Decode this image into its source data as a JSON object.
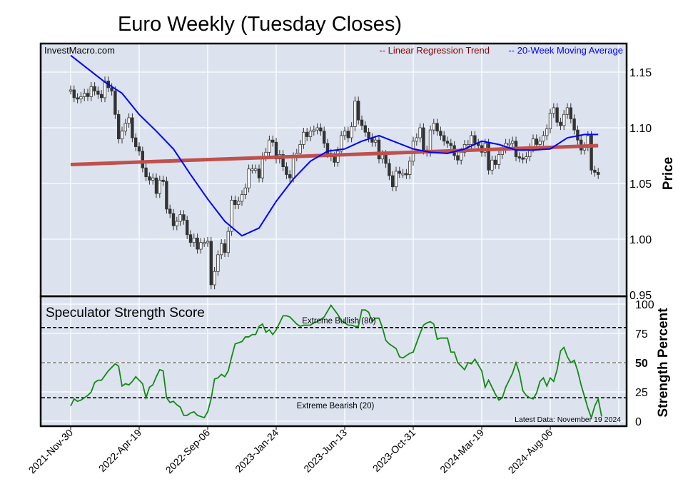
{
  "title": "Euro Weekly (Tuesday Closes)",
  "watermark": "InvestMacro.com",
  "colors": {
    "plot_bg": "#dce3ef",
    "grid": "#ffffff",
    "up_candle": "#ffffff",
    "down_candle": "#333333",
    "trend": "#c0504d",
    "moving_average": "#0000ff",
    "strength": "#138a13",
    "trend_legend": "#8b0000"
  },
  "chart_data": [
    {
      "type": "candlestick",
      "ylabel": "Price",
      "ylim": [
        0.95,
        1.17
      ],
      "yticks": [
        "1.15",
        "1.10",
        "1.05",
        "1.00",
        "0.95"
      ],
      "grid": true,
      "legend_position": "top-right",
      "legend": [
        {
          "label": "-- Linear Regression Trend",
          "color": "#8b0000"
        },
        {
          "label": "-- 20-Week Moving Average",
          "color": "#0000ff"
        }
      ],
      "x_axis": {
        "type": "date",
        "frequency": "weekly",
        "first_week": "2021-11-30",
        "ticks": [
          "2021-Nov-30",
          "2022-Apr-19",
          "2022-Sep-06",
          "2023-Jan-24",
          "2023-Jun-13",
          "2023-Oct-31",
          "2024-Mar-19",
          "2024-Aug-06"
        ]
      },
      "weekly_closes": [
        1.134,
        1.127,
        1.126,
        1.128,
        1.131,
        1.128,
        1.137,
        1.133,
        1.13,
        1.127,
        1.142,
        1.136,
        1.133,
        1.112,
        1.09,
        1.097,
        1.104,
        1.109,
        1.091,
        1.083,
        1.079,
        1.064,
        1.056,
        1.053,
        1.055,
        1.041,
        1.053,
        1.052,
        1.027,
        1.023,
        1.012,
        1.016,
        1.022,
        1.017,
        1.004,
        0.997,
        1.001,
        0.991,
        0.997,
        0.997,
        0.998,
        0.959,
        0.971,
        0.986,
        0.996,
        0.988,
        1.007,
        1.035,
        1.031,
        1.034,
        1.04,
        1.046,
        1.063,
        1.063,
        1.063,
        1.055,
        1.074,
        1.078,
        1.089,
        1.087,
        1.072,
        1.076,
        1.065,
        1.058,
        1.055,
        1.074,
        1.077,
        1.085,
        1.096,
        1.092,
        1.097,
        1.098,
        1.1,
        1.097,
        1.086,
        1.077,
        1.074,
        1.069,
        1.079,
        1.093,
        1.097,
        1.091,
        1.101,
        1.124,
        1.107,
        1.102,
        1.096,
        1.091,
        1.087,
        1.089,
        1.072,
        1.076,
        1.068,
        1.057,
        1.047,
        1.061,
        1.059,
        1.059,
        1.058,
        1.07,
        1.088,
        1.091,
        1.1,
        1.08,
        1.078,
        1.098,
        1.104,
        1.097,
        1.093,
        1.088,
        1.086,
        1.084,
        1.075,
        1.071,
        1.078,
        1.085,
        1.085,
        1.093,
        1.086,
        1.084,
        1.078,
        1.086,
        1.062,
        1.071,
        1.067,
        1.076,
        1.081,
        1.086,
        1.086,
        1.088,
        1.074,
        1.073,
        1.072,
        1.074,
        1.082,
        1.09,
        1.085,
        1.088,
        1.093,
        1.099,
        1.113,
        1.118,
        1.105,
        1.102,
        1.112,
        1.118,
        1.108,
        1.098,
        1.089,
        1.08,
        1.083,
        1.093,
        1.062,
        1.06,
        1.058
      ],
      "moving_average_20w": [
        [
          "2021-11-30",
          1.165
        ],
        [
          "2022-01-04",
          1.153
        ],
        [
          "2022-02-08",
          1.141
        ],
        [
          "2022-03-15",
          1.131
        ],
        [
          "2022-04-19",
          1.112
        ],
        [
          "2022-05-24",
          1.097
        ],
        [
          "2022-06-28",
          1.081
        ],
        [
          "2022-08-02",
          1.058
        ],
        [
          "2022-09-06",
          1.036
        ],
        [
          "2022-10-11",
          1.016
        ],
        [
          "2022-11-15",
          1.003
        ],
        [
          "2022-12-20",
          1.01
        ],
        [
          "2023-01-24",
          1.034
        ],
        [
          "2023-02-28",
          1.054
        ],
        [
          "2023-04-04",
          1.07
        ],
        [
          "2023-05-09",
          1.079
        ],
        [
          "2023-06-13",
          1.081
        ],
        [
          "2023-07-18",
          1.088
        ],
        [
          "2023-08-22",
          1.093
        ],
        [
          "2023-09-26",
          1.087
        ],
        [
          "2023-10-31",
          1.081
        ],
        [
          "2023-12-05",
          1.078
        ],
        [
          "2024-01-09",
          1.077
        ],
        [
          "2024-02-13",
          1.081
        ],
        [
          "2024-03-19",
          1.088
        ],
        [
          "2024-04-23",
          1.085
        ],
        [
          "2024-05-28",
          1.08
        ],
        [
          "2024-07-02",
          1.08
        ],
        [
          "2024-08-06",
          1.081
        ],
        [
          "2024-09-10",
          1.091
        ],
        [
          "2024-10-15",
          1.094
        ],
        [
          "2024-11-12",
          1.094
        ]
      ],
      "linear_regression_trend": [
        [
          "2021-11-30",
          1.067
        ],
        [
          "2024-11-12",
          1.084
        ]
      ]
    },
    {
      "type": "line",
      "title": "Speculator Strength Score",
      "ylabel": "Strength Percent",
      "ylim": [
        0,
        100
      ],
      "yticks": [
        "100",
        "75",
        "50",
        "25",
        "0"
      ],
      "reference_lines": [
        {
          "value": 80,
          "label": "Extreme Bullish (80)",
          "style": "dashed",
          "color": "#000000"
        },
        {
          "value": 50,
          "label": "",
          "style": "dashed",
          "color": "#808080"
        },
        {
          "value": 20,
          "label": "Extreme Bearish (20)",
          "style": "dashed",
          "color": "#000000"
        }
      ],
      "annotation": "Latest Data: November 19 2024",
      "x_axis": {
        "type": "date",
        "frequency": "weekly",
        "first_week": "2021-11-30",
        "last_week": "2024-11-19"
      },
      "weekly_values": [
        13,
        19,
        17,
        18,
        20,
        22,
        25,
        33,
        35,
        35,
        39,
        43,
        46,
        49,
        47,
        30,
        32,
        31,
        34,
        38,
        35,
        32,
        20,
        29,
        31,
        38,
        44,
        43,
        20,
        16,
        17,
        14,
        12,
        5,
        5,
        7,
        8,
        5,
        4,
        3,
        8,
        19,
        36,
        37,
        40,
        38,
        43,
        55,
        66,
        67,
        68,
        72,
        72,
        74,
        74,
        81,
        83,
        76,
        78,
        74,
        78,
        84,
        90,
        90,
        89,
        86,
        83,
        81,
        82,
        82,
        82,
        84,
        85,
        87,
        89,
        94,
        99,
        95,
        91,
        86,
        84,
        82,
        82,
        81,
        81,
        95,
        95,
        93,
        85,
        88,
        88,
        80,
        69,
        66,
        64,
        62,
        55,
        54,
        56,
        58,
        59,
        67,
        75,
        82,
        84,
        85,
        83,
        70,
        71,
        71,
        71,
        59,
        59,
        50,
        47,
        44,
        50,
        49,
        53,
        48,
        43,
        29,
        35,
        29,
        23,
        18,
        20,
        29,
        35,
        41,
        50,
        41,
        26,
        22,
        20,
        19,
        24,
        34,
        37,
        30,
        37,
        34,
        44,
        60,
        63,
        55,
        50,
        52,
        43,
        31,
        21,
        11,
        3,
        13,
        19,
        4
      ]
    }
  ]
}
